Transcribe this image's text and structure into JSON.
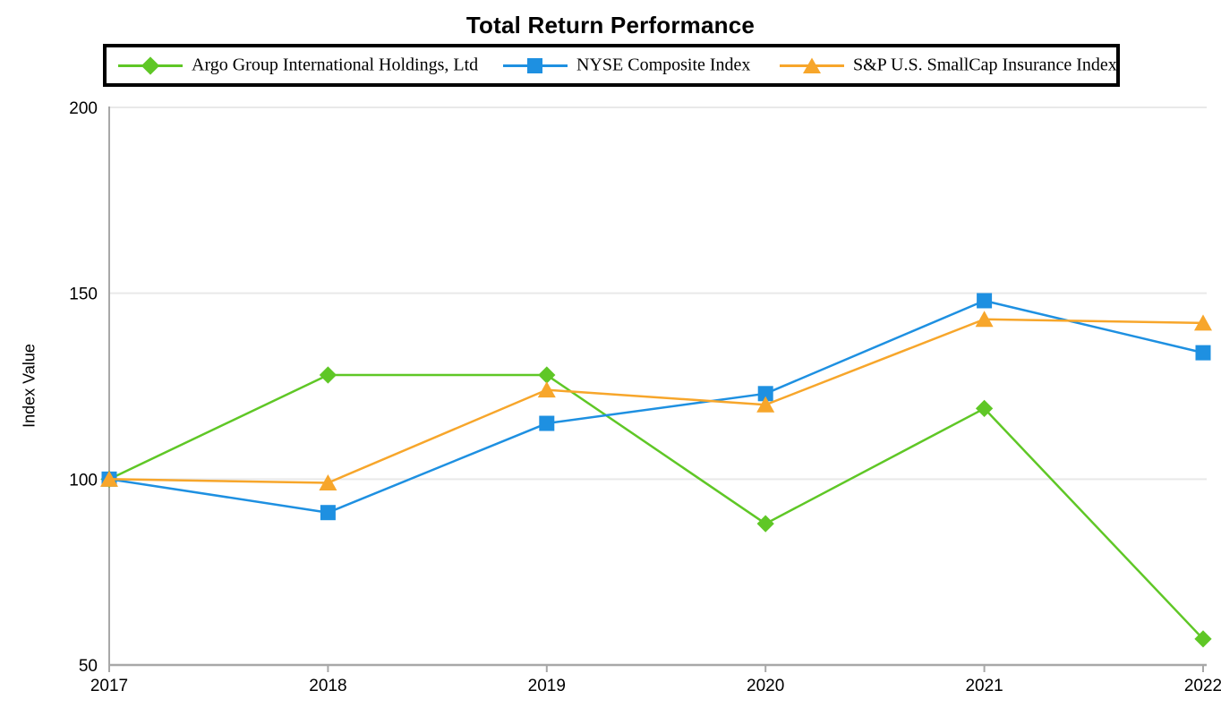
{
  "chart_data": {
    "type": "line",
    "title": "Total Return Performance",
    "ylabel": "Index Value",
    "xlabel": "",
    "categories": [
      "2017",
      "2018",
      "2019",
      "2020",
      "2021",
      "2022"
    ],
    "y_ticks": [
      50,
      100,
      150,
      200
    ],
    "ylim": [
      50,
      200
    ],
    "grid": "horizontal-only",
    "legend_position": "top-boxed",
    "series": [
      {
        "name": "Argo Group International Holdings, Ltd",
        "color": "#5FC726",
        "marker": "diamond",
        "values": [
          100,
          128,
          128,
          88,
          119,
          57
        ]
      },
      {
        "name": "NYSE Composite Index",
        "color": "#1E90E1",
        "marker": "square",
        "values": [
          100,
          91,
          115,
          123,
          148,
          134
        ]
      },
      {
        "name": "S&P U.S. SmallCap Insurance Index",
        "color": "#F7A62B",
        "marker": "triangle",
        "values": [
          100,
          99,
          124,
          120,
          143,
          142
        ]
      }
    ],
    "axis_color": "#A8A8A8",
    "gridline_color": "#E9E9E9"
  }
}
